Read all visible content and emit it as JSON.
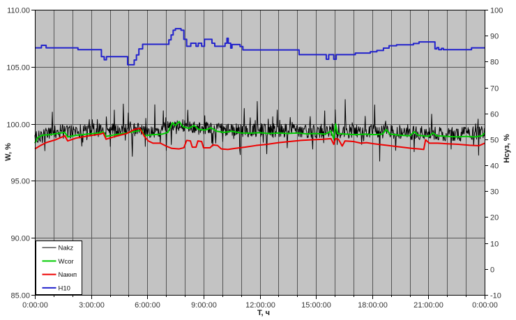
{
  "chart_data": {
    "type": "line",
    "title": "",
    "x_axis": {
      "label": "T, ч",
      "min": 0,
      "max": 24,
      "major_tick_hours": 3,
      "minor_tick_hours": 1,
      "tick_labels": [
        "0:00:00",
        "3:00:00",
        "6:00:00",
        "9:00:00",
        "12:00:00",
        "15:00:00",
        "18:00:00",
        "21:00:00",
        "0:00:00"
      ]
    },
    "y_left": {
      "label": "W, %",
      "min": 85,
      "max": 110,
      "tick_step": 5,
      "tick_labels": [
        "110.00",
        "105.00",
        "100.00",
        "95.00",
        "90.00",
        "85.00"
      ],
      "grid": true
    },
    "y_right": {
      "label": "Нсуз, %",
      "min": -10,
      "max": 100,
      "tick_step": 10,
      "tick_labels": [
        "100",
        "90",
        "80",
        "70",
        "60",
        "50",
        "40",
        "30",
        "20",
        "10",
        "0",
        "-10"
      ],
      "grid": false
    },
    "plot": {
      "bg_color": "#c3c3c3",
      "grid_color": "#555555",
      "border_color": "#000000"
    },
    "legend": {
      "position": "bottom-left",
      "bg": "#ffffff",
      "border_color": "#000000",
      "entries": [
        "Nakz",
        "Wcor",
        "Nакнп",
        "H10"
      ]
    },
    "series": [
      {
        "name": "Nakz",
        "slug": "nakz",
        "color": "#000000",
        "axis": "left",
        "width": 1,
        "style": "noisy",
        "baseline_t_step": 1,
        "baseline": [
          98.7,
          99.35,
          99.3,
          99.45,
          99.35,
          99.6,
          99.35,
          99.55,
          99.9,
          99.7,
          99.5,
          99.45,
          99.45,
          99.4,
          99.45,
          99.35,
          99.4,
          99.3,
          99.35,
          99.3,
          99.2,
          99.15,
          99.1,
          99.1,
          99.3
        ],
        "noise": {
          "amp": 0.62,
          "spike_prob": 0.1,
          "spike_amp": 1.9,
          "tail_prob": 0.012,
          "tail_amp": 2.6,
          "seed": 20,
          "points": 900,
          "clamp_min": 96.7,
          "clamp_max": 102.4
        }
      },
      {
        "name": "Wcor",
        "slug": "wcor",
        "color": "#00cc00",
        "axis": "left",
        "width": 2,
        "style": "linear",
        "points": [
          [
            0,
            98.3
          ],
          [
            0.15,
            98.8
          ],
          [
            0.4,
            99.0
          ],
          [
            0.8,
            99.05
          ],
          [
            1.2,
            99.15
          ],
          [
            1.6,
            99.25
          ],
          [
            1.75,
            98.85
          ],
          [
            2.2,
            99.0
          ],
          [
            2.8,
            99.1
          ],
          [
            3.4,
            99.2
          ],
          [
            3.65,
            99.3
          ],
          [
            3.8,
            98.9
          ],
          [
            4.3,
            99.05
          ],
          [
            4.9,
            99.2
          ],
          [
            5.4,
            99.35
          ],
          [
            5.7,
            99.45
          ],
          [
            5.85,
            98.95
          ],
          [
            6.3,
            99.05
          ],
          [
            6.8,
            99.1
          ],
          [
            7.1,
            99.25
          ],
          [
            7.35,
            100.1
          ],
          [
            7.5,
            99.85
          ],
          [
            7.7,
            100.2
          ],
          [
            7.9,
            99.75
          ],
          [
            8.2,
            99.6
          ],
          [
            8.5,
            99.85
          ],
          [
            8.75,
            99.5
          ],
          [
            9.1,
            99.45
          ],
          [
            9.4,
            99.65
          ],
          [
            9.7,
            99.35
          ],
          [
            10.1,
            99.25
          ],
          [
            10.5,
            99.35
          ],
          [
            11,
            99.2
          ],
          [
            11.5,
            99.18
          ],
          [
            12,
            99.22
          ],
          [
            12.5,
            99.15
          ],
          [
            13,
            99.2
          ],
          [
            13.5,
            99.15
          ],
          [
            14,
            99.2
          ],
          [
            14.5,
            99.12
          ],
          [
            15,
            99.15
          ],
          [
            15.5,
            99.1
          ],
          [
            15.8,
            99.35
          ],
          [
            15.95,
            98.7
          ],
          [
            16.05,
            100.0
          ],
          [
            16.15,
            99.15
          ],
          [
            16.6,
            99.1
          ],
          [
            17.1,
            99.05
          ],
          [
            17.6,
            99.1
          ],
          [
            18.1,
            99.05
          ],
          [
            18.55,
            99.1
          ],
          [
            18.75,
            99.5
          ],
          [
            18.95,
            99.1
          ],
          [
            19.5,
            99.0
          ],
          [
            20.0,
            98.95
          ],
          [
            20.25,
            99.3
          ],
          [
            20.45,
            99.0
          ],
          [
            21,
            98.9
          ],
          [
            21.25,
            99.2
          ],
          [
            21.45,
            98.95
          ],
          [
            22,
            98.9
          ],
          [
            22.5,
            98.85
          ],
          [
            23,
            98.9
          ],
          [
            23.5,
            98.85
          ],
          [
            23.85,
            98.95
          ],
          [
            24,
            99.2
          ]
        ]
      },
      {
        "name": "Nакнп",
        "slug": "naknp",
        "color": "#ee0000",
        "axis": "left",
        "width": 2,
        "style": "linear",
        "points": [
          [
            0,
            97.8
          ],
          [
            0.3,
            98.1
          ],
          [
            0.6,
            98.35
          ],
          [
            1.1,
            98.6
          ],
          [
            1.6,
            98.95
          ],
          [
            1.75,
            98.5
          ],
          [
            2.2,
            98.75
          ],
          [
            2.9,
            98.95
          ],
          [
            3.5,
            99.1
          ],
          [
            3.65,
            99.2
          ],
          [
            3.8,
            98.65
          ],
          [
            4.3,
            98.9
          ],
          [
            4.9,
            99.15
          ],
          [
            5.3,
            99.5
          ],
          [
            5.6,
            99.6
          ],
          [
            5.85,
            98.9
          ],
          [
            6.05,
            98.5
          ],
          [
            6.3,
            98.3
          ],
          [
            6.7,
            98.3
          ],
          [
            7.0,
            98.05
          ],
          [
            7.3,
            97.85
          ],
          [
            7.7,
            97.8
          ],
          [
            7.95,
            97.9
          ],
          [
            8.1,
            98.55
          ],
          [
            8.3,
            98.5
          ],
          [
            8.4,
            97.95
          ],
          [
            8.6,
            97.95
          ],
          [
            8.7,
            98.5
          ],
          [
            8.9,
            98.45
          ],
          [
            9.0,
            97.9
          ],
          [
            9.35,
            97.9
          ],
          [
            9.5,
            98.15
          ],
          [
            9.75,
            98.1
          ],
          [
            9.95,
            97.8
          ],
          [
            10.3,
            97.75
          ],
          [
            10.7,
            97.85
          ],
          [
            11.2,
            97.95
          ],
          [
            11.8,
            98.1
          ],
          [
            12.4,
            98.2
          ],
          [
            13.0,
            98.35
          ],
          [
            13.6,
            98.45
          ],
          [
            14.2,
            98.55
          ],
          [
            14.8,
            98.6
          ],
          [
            15.4,
            98.65
          ],
          [
            15.8,
            98.7
          ],
          [
            15.95,
            98.2
          ],
          [
            16.05,
            98.7
          ],
          [
            16.2,
            98.65
          ],
          [
            16.4,
            98.05
          ],
          [
            16.55,
            98.5
          ],
          [
            17.0,
            98.45
          ],
          [
            17.4,
            98.3
          ],
          [
            17.7,
            98.35
          ],
          [
            18.1,
            98.25
          ],
          [
            18.6,
            98.15
          ],
          [
            19.1,
            98.05
          ],
          [
            19.6,
            97.95
          ],
          [
            20.1,
            97.85
          ],
          [
            20.5,
            97.8
          ],
          [
            20.75,
            97.75
          ],
          [
            20.85,
            98.6
          ],
          [
            21.05,
            98.3
          ],
          [
            21.5,
            98.3
          ],
          [
            22.0,
            98.25
          ],
          [
            22.6,
            98.2
          ],
          [
            23.2,
            98.12
          ],
          [
            23.7,
            98.08
          ],
          [
            24,
            98.3
          ]
        ]
      },
      {
        "name": "H10",
        "slug": "h10",
        "color": "#2222cc",
        "axis": "right",
        "width": 2,
        "style": "linear",
        "points": [
          [
            0,
            85.3
          ],
          [
            0.35,
            85.3
          ],
          [
            0.35,
            86.3
          ],
          [
            0.6,
            86.3
          ],
          [
            0.6,
            85.3
          ],
          [
            2.3,
            85.3
          ],
          [
            2.3,
            84.6
          ],
          [
            3.55,
            84.6
          ],
          [
            3.55,
            81.9
          ],
          [
            3.7,
            81.9
          ],
          [
            3.7,
            80.7
          ],
          [
            3.82,
            80.7
          ],
          [
            3.82,
            81.9
          ],
          [
            4.95,
            81.9
          ],
          [
            4.95,
            78.8
          ],
          [
            5.3,
            78.8
          ],
          [
            5.3,
            80.6
          ],
          [
            5.42,
            80.6
          ],
          [
            5.42,
            82.6
          ],
          [
            5.55,
            82.6
          ],
          [
            5.55,
            84.9
          ],
          [
            5.75,
            84.9
          ],
          [
            5.75,
            86.7
          ],
          [
            7.15,
            86.7
          ],
          [
            7.15,
            88.4
          ],
          [
            7.27,
            88.4
          ],
          [
            7.27,
            90.3
          ],
          [
            7.38,
            90.3
          ],
          [
            7.38,
            92.1
          ],
          [
            7.5,
            92.1
          ],
          [
            7.5,
            92.7
          ],
          [
            7.8,
            92.7
          ],
          [
            7.8,
            92.1
          ],
          [
            7.95,
            92.1
          ],
          [
            7.95,
            88.6
          ],
          [
            8.1,
            88.6
          ],
          [
            8.1,
            85.9
          ],
          [
            8.32,
            85.9
          ],
          [
            8.32,
            87.1
          ],
          [
            8.6,
            87.1
          ],
          [
            8.6,
            85.9
          ],
          [
            8.72,
            85.9
          ],
          [
            8.72,
            87.1
          ],
          [
            8.9,
            87.1
          ],
          [
            8.9,
            85.9
          ],
          [
            9.05,
            85.9
          ],
          [
            9.05,
            88.6
          ],
          [
            9.45,
            88.6
          ],
          [
            9.45,
            87.1
          ],
          [
            9.6,
            87.1
          ],
          [
            9.6,
            85.9
          ],
          [
            10.15,
            85.9
          ],
          [
            10.15,
            87.1
          ],
          [
            10.25,
            87.1
          ],
          [
            10.25,
            89.0
          ],
          [
            10.32,
            89.0
          ],
          [
            10.32,
            87.1
          ],
          [
            10.45,
            87.1
          ],
          [
            10.45,
            85.2
          ],
          [
            10.52,
            85.2
          ],
          [
            10.52,
            86.6
          ],
          [
            10.95,
            86.6
          ],
          [
            10.95,
            85.8
          ],
          [
            11.1,
            85.8
          ],
          [
            11.1,
            84.5
          ],
          [
            14.1,
            84.5
          ],
          [
            14.1,
            82.7
          ],
          [
            15.55,
            82.7
          ],
          [
            15.55,
            80.9
          ],
          [
            15.68,
            80.9
          ],
          [
            15.68,
            82.7
          ],
          [
            15.95,
            82.7
          ],
          [
            15.95,
            80.9
          ],
          [
            16.08,
            80.9
          ],
          [
            16.08,
            82.7
          ],
          [
            17.1,
            82.7
          ],
          [
            17.1,
            83.3
          ],
          [
            17.9,
            83.3
          ],
          [
            17.9,
            83.8
          ],
          [
            18.25,
            83.8
          ],
          [
            18.25,
            84.3
          ],
          [
            18.6,
            84.3
          ],
          [
            18.6,
            85.2
          ],
          [
            18.9,
            85.2
          ],
          [
            18.9,
            86.1
          ],
          [
            19.3,
            86.1
          ],
          [
            19.3,
            86.5
          ],
          [
            20.2,
            86.5
          ],
          [
            20.2,
            87.0
          ],
          [
            20.5,
            87.0
          ],
          [
            20.5,
            87.6
          ],
          [
            21.35,
            87.6
          ],
          [
            21.35,
            84.9
          ],
          [
            21.45,
            84.9
          ],
          [
            21.45,
            85.4
          ],
          [
            21.55,
            85.4
          ],
          [
            21.55,
            84.6
          ],
          [
            21.7,
            84.6
          ],
          [
            21.7,
            85.1
          ],
          [
            21.8,
            85.1
          ],
          [
            21.8,
            84.6
          ],
          [
            23.3,
            84.6
          ],
          [
            23.3,
            85.3
          ],
          [
            24,
            85.3
          ]
        ]
      }
    ]
  }
}
